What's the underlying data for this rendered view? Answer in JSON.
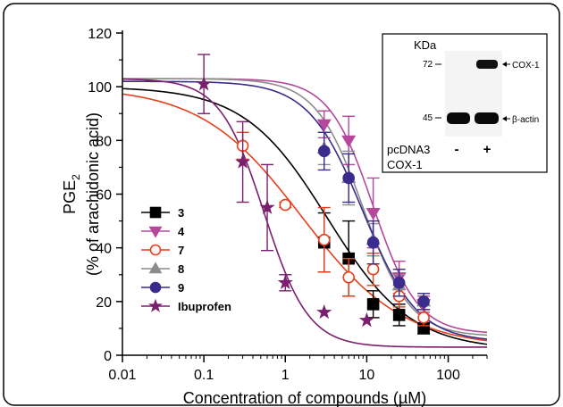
{
  "chart_data": {
    "type": "scatter",
    "title": "",
    "xlabel": "Concentration of compounds (µM)",
    "ylabel_line1": "PGE",
    "ylabel_subscript": "2",
    "ylabel_line2": "(% of arachidonic acid)",
    "x_scale": "log",
    "xlim": [
      0.01,
      300
    ],
    "ylim": [
      0,
      120
    ],
    "x_ticks": [
      0.01,
      0.1,
      1,
      10,
      100
    ],
    "x_tick_labels": [
      "0.01",
      "0.1",
      "1",
      "10",
      "100"
    ],
    "y_ticks": [
      0,
      20,
      40,
      60,
      80,
      100,
      120
    ],
    "y_tick_labels": [
      "0",
      "20",
      "40",
      "60",
      "80",
      "100",
      "120"
    ],
    "grid": false,
    "legend_position": "left-center",
    "series": [
      {
        "name": "3",
        "marker": "square",
        "color": "#000000",
        "filled": true,
        "x": [
          3,
          6,
          12,
          25,
          50
        ],
        "y": [
          42,
          36,
          19,
          15,
          10
        ],
        "err": [
          11,
          14,
          5,
          4,
          2
        ],
        "fit": {
          "top": 100,
          "bottom": 2,
          "ic50": 3.3,
          "hill": 0.85
        }
      },
      {
        "name": "4",
        "marker": "triangle-down",
        "color": "#b5489b",
        "filled": true,
        "x": [
          3,
          6,
          12,
          25,
          50
        ],
        "y": [
          86,
          80,
          53,
          29,
          19
        ],
        "err": [
          5,
          9,
          13,
          6,
          3
        ],
        "fit": {
          "top": 103,
          "bottom": 8,
          "ic50": 12,
          "hill": 1.6
        }
      },
      {
        "name": "7",
        "marker": "circle-open",
        "color": "#e8401c",
        "filled": false,
        "x": [
          0.3,
          1,
          3,
          6,
          12,
          25,
          50
        ],
        "y": [
          78,
          56,
          43,
          29,
          32,
          22,
          14
        ],
        "err": [
          5,
          1,
          12,
          7,
          6,
          4,
          3
        ],
        "fit": {
          "top": 100,
          "bottom": 3,
          "ic50": 1.6,
          "hill": 0.7
        }
      },
      {
        "name": "8",
        "marker": "triangle-up",
        "color": "#8c8c8c",
        "filled": true,
        "x": [
          3,
          6,
          12,
          25,
          50
        ],
        "y": [
          77,
          66,
          43,
          26,
          20
        ],
        "err": [
          6,
          10,
          6,
          4,
          3
        ],
        "fit": {
          "top": 103,
          "bottom": 7,
          "ic50": 9,
          "hill": 1.5
        }
      },
      {
        "name": "9",
        "marker": "circle",
        "color": "#3a2c8c",
        "filled": true,
        "x": [
          3,
          6,
          12,
          25,
          50
        ],
        "y": [
          76,
          66,
          42,
          27,
          20
        ],
        "err": [
          7,
          9,
          8,
          5,
          3
        ],
        "fit": {
          "top": 102,
          "bottom": 5,
          "ic50": 9,
          "hill": 1.3
        }
      },
      {
        "name": "Ibuprofen",
        "marker": "star",
        "color": "#7a1f6e",
        "filled": true,
        "x": [
          0.1,
          0.3,
          0.6,
          1,
          3,
          10
        ],
        "y": [
          101,
          72,
          55,
          27,
          16,
          13
        ],
        "err": [
          11,
          15,
          16,
          3,
          0,
          0
        ],
        "fit": {
          "top": 103,
          "bottom": 3,
          "ic50": 0.55,
          "hill": 1.6
        }
      }
    ],
    "inset": {
      "unit_label": "KDa",
      "markers": [
        "72",
        "45"
      ],
      "band_labels": [
        "COX-1",
        "β-actin"
      ],
      "row_labels": [
        "pcDNA3",
        "COX-1"
      ],
      "lane_signs": [
        "-",
        "+"
      ]
    }
  }
}
